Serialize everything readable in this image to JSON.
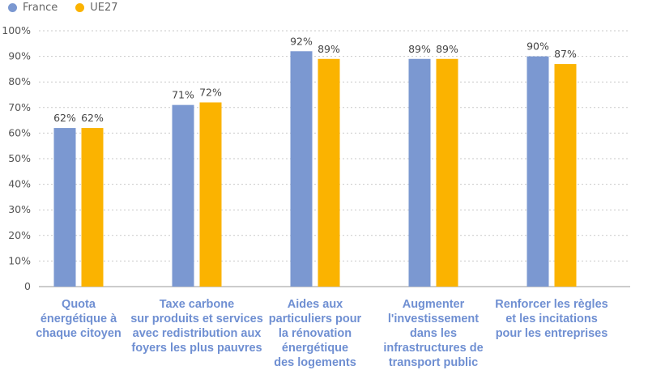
{
  "chart_data": {
    "type": "bar",
    "categories": [
      "Quota\nénergétique à\nchaque citoyen",
      "Taxe carbone\nsur produits et services\navec redistribution aux\nfoyers les plus pauvres",
      "Aides aux\nparticuliers pour\nla rénovation\nénergétique\ndes logements",
      "Augmenter\nl'investissement\ndans les\ninfrastructures de\ntransport public",
      "Renforcer les règles\net les incitations\npour les entreprises"
    ],
    "series": [
      {
        "name": "France",
        "values": [
          62,
          71,
          92,
          89,
          90
        ],
        "labels": [
          "62%",
          "71%",
          "92%",
          "89%",
          "90%"
        ],
        "color": "#7b98d1"
      },
      {
        "name": "UE27",
        "values": [
          62,
          72,
          89,
          89,
          87
        ],
        "labels": [
          "62%",
          "72%",
          "89%",
          "89%",
          "87%"
        ],
        "color": "#fbb300"
      }
    ],
    "yticks": [
      "0",
      "10%",
      "20%",
      "30%",
      "40%",
      "50%",
      "60%",
      "70%",
      "80%",
      "90%",
      "100%"
    ],
    "ylim": [
      0,
      100
    ],
    "grid": true,
    "legend_position": "top-left",
    "colors": {
      "axis_text": "#555555",
      "category_text": "#6f8fd2",
      "grid": "#c9c9c9"
    }
  }
}
